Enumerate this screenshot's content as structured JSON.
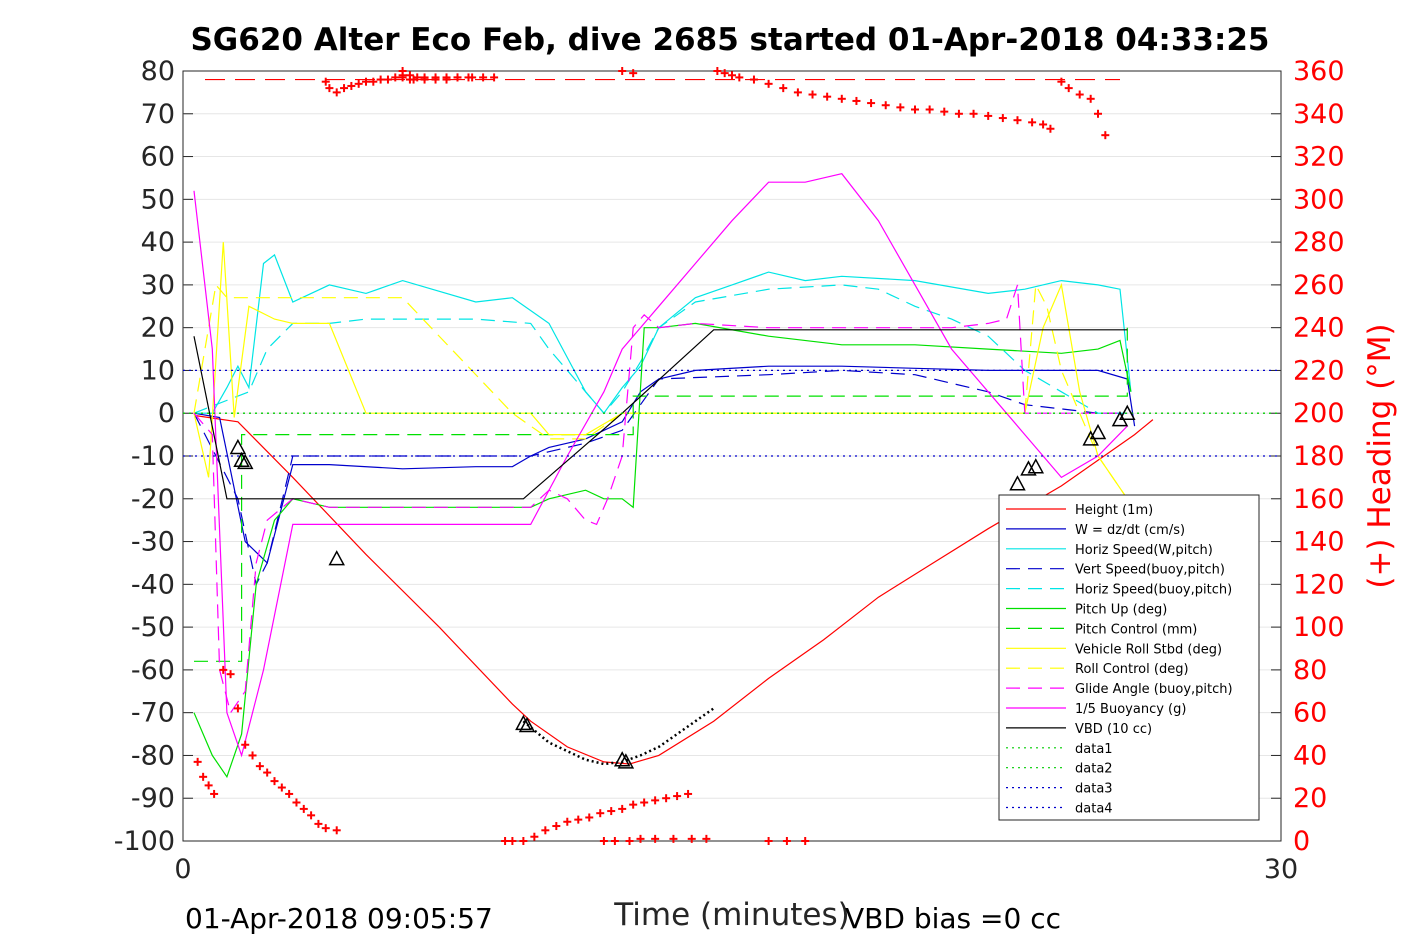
{
  "chart_data": {
    "type": "line",
    "title": "SG620 Alter Eco Feb, dive 2685 started 01-Apr-2018 04:33:25",
    "xlabel": "Time (minutes)",
    "ylabel": "",
    "y2label": "(+) Heading (°M)",
    "xlim": [
      0,
      30
    ],
    "ylim": [
      -100,
      80
    ],
    "y2lim": [
      0,
      360
    ],
    "xticks": [
      "0",
      "30"
    ],
    "yticks": [
      "80",
      "70",
      "60",
      "50",
      "40",
      "30",
      "20",
      "10",
      "0",
      "-10",
      "-20",
      "-30",
      "-40",
      "-50",
      "-60",
      "-70",
      "-80",
      "-90",
      "-100"
    ],
    "y2ticks": [
      "360",
      "340",
      "320",
      "300",
      "280",
      "260",
      "240",
      "220",
      "200",
      "180",
      "160",
      "140",
      "120",
      "100",
      "80",
      "60",
      "40",
      "20",
      "0"
    ],
    "grid": true,
    "legend_position": "inside lower-right",
    "footer_left": "01-Apr-2018 09:05:57",
    "footer_right": "VBD bias =0 cc",
    "series": [
      {
        "name": "Height (1m)",
        "color": "#ff0000",
        "style": "solid",
        "x": [
          0.3,
          1.5,
          3,
          5,
          7,
          9,
          9.5,
          10.5,
          11.5,
          12.2,
          13,
          14.5,
          16,
          17.5,
          19,
          20.5,
          22,
          24,
          26,
          26.5
        ],
        "y": [
          -0.5,
          -2,
          -15,
          -33,
          -50,
          -68,
          -72,
          -78,
          -81.5,
          -82,
          -80,
          -72,
          -62,
          -53,
          -43,
          -35,
          -27,
          -17,
          -5,
          -1.5
        ]
      },
      {
        "name": "W = dz/dt (cm/s)",
        "color": "#0000cc",
        "style": "solid",
        "x": [
          0.3,
          1,
          1.7,
          2.3,
          3,
          4,
          6,
          8,
          9,
          9.5,
          10,
          11,
          12,
          12.5,
          13,
          14,
          16,
          18,
          20,
          22,
          24,
          25,
          25.8,
          26
        ],
        "y": [
          0,
          -1,
          -30,
          -35,
          -12,
          -12,
          -13,
          -12.5,
          -12.5,
          -10,
          -8,
          -6,
          -2,
          5,
          8,
          10,
          11,
          11,
          10.5,
          10,
          10,
          10,
          8,
          -3
        ]
      },
      {
        "name": "Horiz Speed(W,pitch)",
        "color": "#00e5e5",
        "style": "solid",
        "x": [
          0.3,
          0.8,
          1.2,
          1.5,
          1.8,
          2.2,
          2.5,
          3,
          4,
          5,
          6,
          8,
          9,
          10,
          11,
          11.5,
          12,
          12.5,
          13,
          14,
          15,
          16,
          17,
          18,
          20,
          22,
          23,
          24,
          25,
          25.6,
          25.9
        ],
        "y": [
          0,
          0,
          6,
          11,
          6,
          35,
          37,
          26,
          30,
          28,
          31,
          26,
          27,
          21,
          5,
          0,
          6,
          11,
          20,
          27,
          30,
          33,
          31,
          32,
          31,
          28,
          29,
          31,
          30,
          29,
          5
        ]
      },
      {
        "name": "Vert Speed(buoy,pitch)",
        "color": "#0000cc",
        "style": "dashed",
        "x": [
          0.3,
          1.5,
          2,
          2.3,
          3,
          5,
          8,
          9.5,
          10,
          11,
          12,
          13,
          16,
          18,
          20,
          21,
          22,
          23,
          24,
          25,
          25.8
        ],
        "y": [
          0,
          -20,
          -40,
          -35,
          -10,
          -10,
          -10,
          -10,
          -9,
          -7,
          -4,
          8,
          9,
          10,
          9,
          7,
          5,
          2,
          1,
          0,
          0
        ]
      },
      {
        "name": "Horiz Speed(buoy,pitch)",
        "color": "#00e5e5",
        "style": "dashed",
        "x": [
          0.3,
          1.8,
          2.3,
          3,
          4,
          5,
          6,
          8,
          9.5,
          10,
          10.5,
          11,
          11.5,
          12,
          12.5,
          13,
          14,
          16,
          18,
          19,
          20,
          21,
          22,
          23,
          24,
          25,
          25.8
        ],
        "y": [
          0,
          5,
          15,
          21,
          21,
          22,
          22,
          22,
          21,
          15,
          10,
          5,
          0,
          5,
          12,
          20,
          26,
          29,
          30,
          29,
          25,
          22,
          18,
          10,
          5,
          0,
          0
        ]
      },
      {
        "name": "Pitch Up (deg)",
        "color": "#00e000",
        "style": "solid",
        "x": [
          0.3,
          0.8,
          1.2,
          1.6,
          2,
          2.5,
          3,
          4,
          6,
          8,
          9.5,
          10,
          11,
          11.5,
          12,
          12.3,
          12.6,
          13,
          14,
          16,
          18,
          20,
          22,
          24,
          25,
          25.6,
          25.9
        ],
        "y": [
          -70,
          -80,
          -85,
          -75,
          -40,
          -25,
          -20,
          -22,
          -22,
          -22,
          -22,
          -20,
          -18,
          -20,
          -20,
          -22,
          20,
          20,
          21,
          18,
          16,
          16,
          15,
          14,
          15,
          17,
          5
        ]
      },
      {
        "name": "Pitch Control (mm)",
        "color": "#00e000",
        "style": "dashed",
        "x": [
          0.3,
          1.6,
          1.6,
          9.5,
          9.5,
          12.3,
          12.3,
          25.8,
          25.8
        ],
        "y": [
          -58,
          -58,
          -5,
          -5,
          -5,
          -5,
          4,
          4,
          20
        ]
      },
      {
        "name": "Vehicle Roll Stbd (deg)",
        "color": "#ffff00",
        "style": "solid",
        "x": [
          0.3,
          0.7,
          1.1,
          1.4,
          1.8,
          2.5,
          3,
          4,
          5,
          6,
          8,
          9.5,
          10,
          11,
          12,
          14,
          16,
          18,
          20,
          22,
          23,
          23.5,
          24,
          24.5,
          25,
          25.8
        ],
        "y": [
          0,
          -15,
          40,
          -1,
          25,
          22,
          21,
          21,
          0,
          0,
          0,
          0,
          -5,
          -5,
          0,
          0,
          0,
          0,
          0,
          0,
          0,
          20,
          30,
          5,
          -10,
          -20
        ]
      },
      {
        "name": "Roll Control (deg)",
        "color": "#ffff00",
        "style": "dashed",
        "x": [
          0.3,
          0.9,
          1.2,
          1.5,
          1.8,
          2.5,
          4,
          6,
          9,
          10,
          11,
          12,
          14,
          16,
          22,
          23,
          23.3,
          23.6,
          24,
          25,
          25.8
        ],
        "y": [
          0,
          30,
          27,
          27,
          27,
          27,
          27,
          27,
          0,
          -6,
          -6,
          0,
          0,
          0,
          0,
          0,
          30,
          25,
          10,
          -10,
          -20
        ]
      },
      {
        "name": "Glide Angle (buoy,pitch)",
        "color": "#ff00ff",
        "style": "dashed",
        "x": [
          0.3,
          0.8,
          1,
          1.3,
          1.7,
          2,
          2.3,
          3,
          4,
          6,
          8,
          9.5,
          10,
          10.5,
          11,
          11.3,
          11.6,
          12,
          12.3,
          12.6,
          13,
          14,
          16,
          18,
          20,
          21,
          22,
          22.5,
          22.8,
          23,
          25.8
        ],
        "y": [
          0,
          -5,
          -60,
          -70,
          -65,
          -35,
          -25,
          -20,
          -22,
          -22,
          -22,
          -22,
          -18,
          -20,
          -25,
          -26,
          -20,
          -10,
          20,
          23,
          20,
          21,
          20,
          20,
          20,
          20,
          21,
          22,
          30,
          0,
          0
        ]
      },
      {
        "name": "1/5 Buoyancy (g)",
        "color": "#ff00ff",
        "style": "solid",
        "x": [
          0.3,
          0.8,
          1.2,
          1.6,
          2.2,
          3,
          5,
          8,
          9,
          9.5,
          10.5,
          11.5,
          12,
          13,
          14,
          15,
          16,
          17,
          18,
          19,
          20,
          21,
          22,
          23,
          24,
          25,
          25.8
        ],
        "y": [
          52,
          15,
          -70,
          -80,
          -60,
          -26,
          -26,
          -26,
          -26,
          -26,
          -10,
          5,
          15,
          25,
          35,
          45,
          54,
          54,
          56,
          45,
          30,
          15,
          5,
          -5,
          -15,
          -10,
          -3
        ]
      },
      {
        "name": "VBD (10 cc)",
        "color": "#000000",
        "style": "solid",
        "x": [
          0.3,
          1.2,
          1.2,
          9.3,
          12,
          14.5,
          25.8
        ],
        "y": [
          18,
          -20,
          -20,
          -20,
          0,
          19.5,
          19.5
        ]
      },
      {
        "name": "data1",
        "color": "#00cc00",
        "style": "dotted",
        "x": [
          0,
          30
        ],
        "y": [
          0,
          0
        ]
      },
      {
        "name": "data2",
        "color": "#00cc00",
        "style": "dotted",
        "x": [
          0,
          30
        ],
        "y": [
          0,
          0
        ]
      },
      {
        "name": "data3",
        "color": "#0000cc",
        "style": "dotted",
        "x": [
          0,
          30
        ],
        "y": [
          10,
          10
        ]
      },
      {
        "name": "data4",
        "color": "#0000cc",
        "style": "dotted",
        "x": [
          0,
          30
        ],
        "y": [
          -10,
          -10
        ]
      }
    ],
    "vbd_dotted_segment": {
      "color": "#000000",
      "x": [
        9.3,
        10,
        11,
        11.5,
        12,
        12.5,
        13,
        13.5,
        14,
        14.5
      ],
      "y": [
        -72,
        -77,
        -81,
        -82,
        -81.5,
        -80,
        -78,
        -75,
        -72,
        -69
      ]
    },
    "heading_series": {
      "name": "(+) Heading",
      "axis": "right",
      "color": "#ff0000",
      "marker": "+",
      "x": [
        0.4,
        0.55,
        0.7,
        0.85,
        1.1,
        1.3,
        1.5,
        1.7,
        1.9,
        2.1,
        2.3,
        2.5,
        2.7,
        2.9,
        3.1,
        3.3,
        3.5,
        3.7,
        3.9,
        4.2,
        3.9,
        4.0,
        4.2,
        4.4,
        4.6,
        4.8,
        5.0,
        5.2,
        5.4,
        5.6,
        5.8,
        6.0,
        6.3,
        6.6,
        6.9,
        7.2,
        7.5,
        7.8,
        6.2,
        6.0,
        12.0,
        12.3,
        6.0,
        6.2,
        6.4,
        6.6,
        6.9,
        7.2,
        7.5,
        7.9,
        8.2,
        8.5,
        8.8,
        9.0,
        9.3,
        9.6,
        9.9,
        10.2,
        10.5,
        10.8,
        11.1,
        11.4,
        11.7,
        12.0,
        12.3,
        12.6,
        12.9,
        13.2,
        13.5,
        13.8,
        11.5,
        11.8,
        12.2,
        12.5,
        12.9,
        13.4,
        13.9,
        14.3,
        14.6,
        14.8,
        15.0,
        15.2,
        15.6,
        16.0,
        16.4,
        16.8,
        17.2,
        17.6,
        18.0,
        18.4,
        18.8,
        19.2,
        19.6,
        20.0,
        20.4,
        20.8,
        21.2,
        21.6,
        22.0,
        22.4,
        22.8,
        23.2,
        23.5,
        23.7,
        24.0,
        24.2,
        24.5,
        24.8,
        25.0,
        25.2,
        16.0,
        16.5,
        17.0
      ],
      "y": [
        37,
        30,
        26,
        22,
        80,
        78,
        62,
        45,
        40,
        35,
        32,
        28,
        25,
        22,
        18,
        15,
        12,
        8,
        6,
        5,
        355,
        352,
        350,
        352,
        353,
        354,
        355,
        355,
        356,
        356,
        357,
        357,
        356,
        356,
        356,
        356,
        357,
        357,
        358,
        360,
        360,
        359,
        358,
        356,
        357,
        357,
        357,
        357,
        357,
        357,
        357,
        357,
        0,
        0,
        0,
        2,
        5,
        7,
        9,
        10,
        11,
        13,
        14,
        15,
        17,
        18,
        19,
        20,
        21,
        22,
        0,
        0,
        0,
        1,
        1,
        1,
        1,
        1,
        360,
        359,
        358,
        357,
        356,
        354,
        352,
        350,
        349,
        348,
        347,
        346,
        345,
        344,
        343,
        342,
        342,
        341,
        340,
        340,
        339,
        338,
        337,
        336,
        335,
        333,
        355,
        352,
        349,
        347,
        340,
        330,
        0,
        0,
        0
      ]
    },
    "markers": {
      "type": "triangles",
      "color": "#000000",
      "x": [
        1.5,
        1.6,
        1.7,
        4.2,
        9.3,
        9.4,
        12.0,
        12.1,
        22.8,
        23.1,
        23.3,
        24.8,
        25.0,
        25.6,
        25.8
      ],
      "y": [
        -8,
        -11,
        -11.5,
        -34,
        -72.5,
        -73,
        -81,
        -81.5,
        -16.5,
        -13,
        -12.5,
        -6,
        -4.5,
        -1.5,
        0
      ]
    }
  }
}
